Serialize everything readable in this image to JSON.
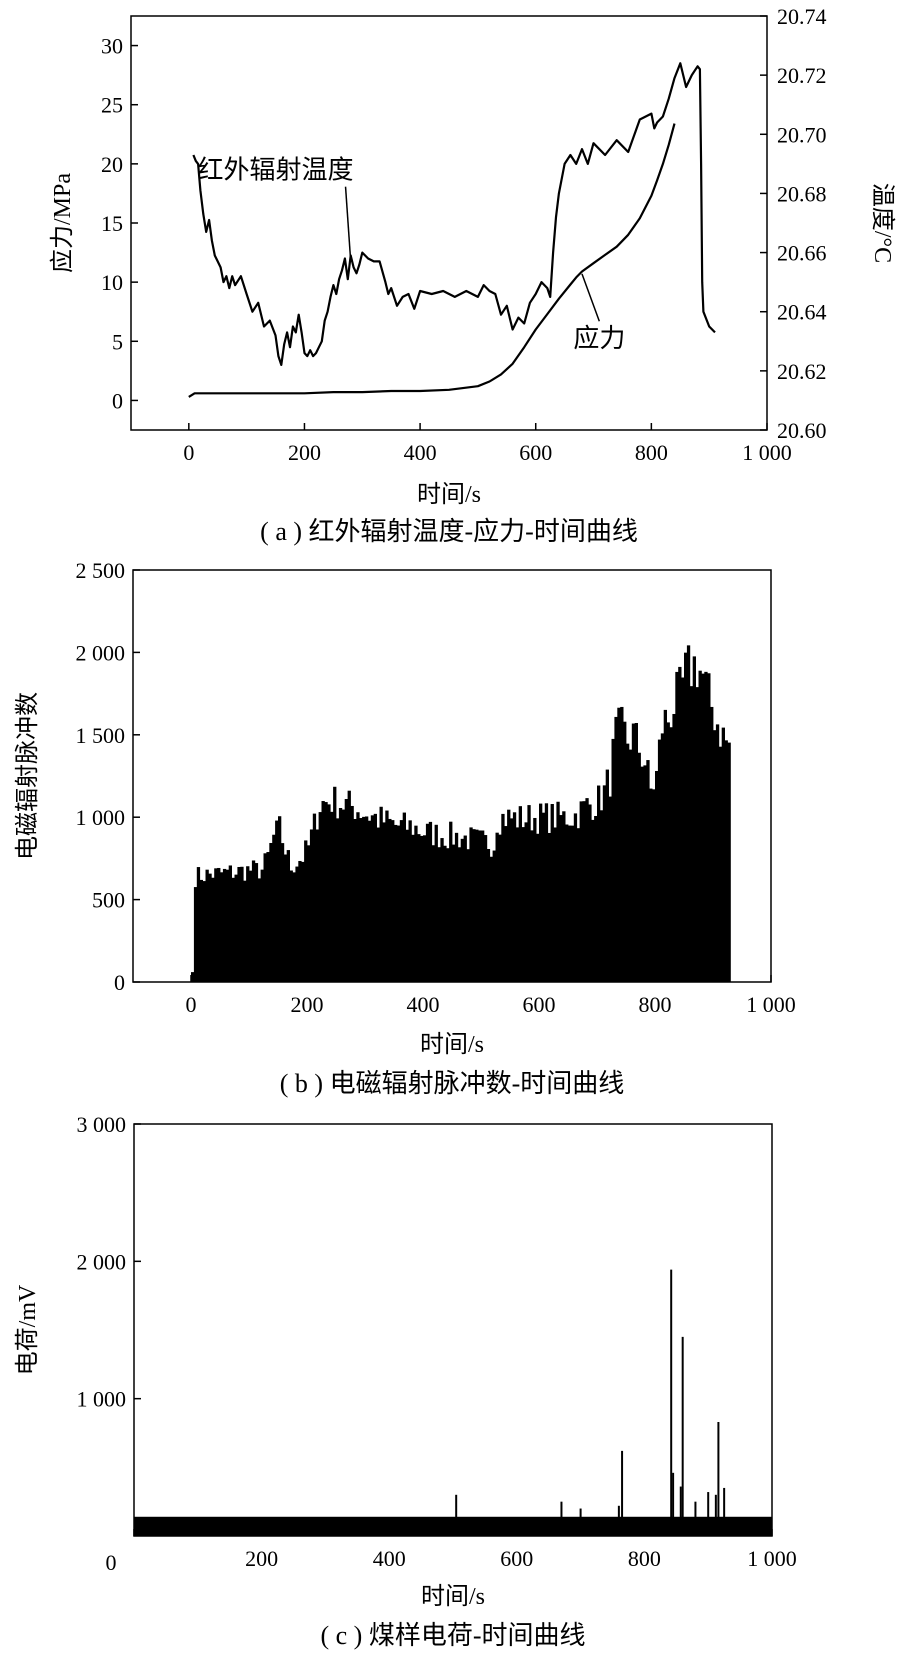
{
  "chart_data": [
    {
      "id": "a",
      "type": "line",
      "caption": "( a ) 红外辐射温度-应力-时间曲线",
      "xlabel": "时间/s",
      "ylabel": "应力/MPa",
      "y2label": "温度/°C",
      "xlim": [
        -100,
        1000
      ],
      "ylim": [
        -2.5,
        32.5
      ],
      "y2lim": [
        20.6,
        20.74
      ],
      "xticks": [
        0,
        200,
        400,
        600,
        800,
        1000
      ],
      "xtick_labels": [
        "0",
        "200",
        "400",
        "600",
        "800",
        "1 000"
      ],
      "yticks": [
        0,
        5,
        10,
        15,
        20,
        25,
        30
      ],
      "ytick_labels": [
        "0",
        "5",
        "10",
        "15",
        "20",
        "25",
        "30"
      ],
      "y2ticks": [
        20.6,
        20.62,
        20.64,
        20.66,
        20.68,
        20.7,
        20.72,
        20.74
      ],
      "y2tick_labels": [
        "20.60",
        "20.62",
        "20.64",
        "20.66",
        "20.68",
        "20.70",
        "20.72",
        "20.74"
      ],
      "annotations": [
        {
          "text": "红外辐射温度",
          "target": [
            280,
            20.657
          ],
          "label_at": [
            150,
            20.685
          ]
        },
        {
          "text": "应力",
          "target": [
            680,
            10.7
          ],
          "label_at": [
            710,
            4.5
          ]
        }
      ],
      "series": [
        {
          "name": "红外辐射温度",
          "axis": "right",
          "x": [
            8,
            12,
            16,
            20,
            25,
            30,
            35,
            40,
            45,
            50,
            55,
            60,
            65,
            70,
            75,
            80,
            90,
            100,
            110,
            120,
            130,
            140,
            150,
            155,
            160,
            165,
            170,
            175,
            180,
            185,
            190,
            195,
            200,
            205,
            210,
            215,
            220,
            225,
            230,
            235,
            240,
            245,
            250,
            255,
            260,
            265,
            270,
            275,
            280,
            285,
            290,
            295,
            300,
            310,
            320,
            330,
            340,
            345,
            350,
            360,
            370,
            380,
            390,
            400,
            420,
            440,
            460,
            480,
            500,
            510,
            520,
            530,
            540,
            550,
            560,
            570,
            580,
            590,
            600,
            610,
            620,
            625,
            630,
            635,
            640,
            650,
            660,
            670,
            680,
            690,
            700,
            720,
            740,
            760,
            780,
            800,
            805,
            810,
            820,
            830,
            840,
            850,
            860,
            870,
            880,
            884,
            886,
            888,
            890,
            900,
            910
          ],
          "y": [
            20.693,
            20.691,
            20.69,
            20.681,
            20.673,
            20.667,
            20.671,
            20.664,
            20.659,
            20.657,
            20.655,
            20.65,
            20.652,
            20.648,
            20.652,
            20.649,
            20.652,
            20.646,
            20.64,
            20.643,
            20.635,
            20.637,
            20.632,
            20.625,
            20.622,
            20.629,
            20.633,
            20.628,
            20.635,
            20.633,
            20.639,
            20.633,
            20.626,
            20.625,
            20.627,
            20.625,
            20.626,
            20.628,
            20.63,
            20.637,
            20.64,
            20.645,
            20.649,
            20.646,
            20.651,
            20.654,
            20.658,
            20.651,
            20.659,
            20.655,
            20.653,
            20.656,
            20.66,
            20.658,
            20.657,
            20.657,
            20.65,
            20.646,
            20.648,
            20.642,
            20.645,
            20.646,
            20.641,
            20.647,
            20.646,
            20.647,
            20.645,
            20.647,
            20.645,
            20.649,
            20.647,
            20.646,
            20.639,
            20.642,
            20.634,
            20.638,
            20.636,
            20.643,
            20.646,
            20.65,
            20.648,
            20.645,
            20.66,
            20.672,
            20.68,
            20.69,
            20.693,
            20.69,
            20.695,
            20.69,
            20.697,
            20.693,
            20.698,
            20.694,
            20.705,
            20.707,
            20.702,
            20.704,
            20.706,
            20.712,
            20.719,
            20.724,
            20.716,
            20.72,
            20.723,
            20.722,
            20.69,
            20.65,
            20.64,
            20.635,
            20.633
          ]
        },
        {
          "name": "应力",
          "axis": "left",
          "x": [
            0,
            10,
            50,
            100,
            150,
            200,
            250,
            300,
            350,
            400,
            450,
            500,
            520,
            540,
            560,
            580,
            600,
            620,
            640,
            660,
            670,
            680,
            700,
            720,
            740,
            760,
            780,
            800,
            810,
            820,
            830,
            840
          ],
          "y": [
            0.3,
            0.6,
            0.6,
            0.6,
            0.6,
            0.6,
            0.7,
            0.7,
            0.8,
            0.8,
            0.9,
            1.2,
            1.6,
            2.2,
            3.1,
            4.5,
            6.0,
            7.3,
            8.6,
            9.8,
            10.4,
            10.9,
            11.6,
            12.3,
            13.0,
            14.0,
            15.4,
            17.3,
            18.6,
            20.0,
            21.6,
            23.4
          ]
        }
      ]
    },
    {
      "id": "b",
      "type": "bar",
      "caption": "( b ) 电磁辐射脉冲数-时间曲线",
      "xlabel": "时间/s",
      "ylabel": "电磁辐射脉冲数",
      "xlim": [
        -100,
        1000
      ],
      "ylim": [
        0,
        2500
      ],
      "xticks": [
        0,
        200,
        400,
        600,
        800,
        1000
      ],
      "xtick_labels": [
        "0",
        "200",
        "400",
        "600",
        "800",
        "1 000"
      ],
      "yticks": [
        0,
        500,
        1000,
        1500,
        2000,
        2500
      ],
      "ytick_labels": [
        "0",
        "500",
        "1 000",
        "1 500",
        "2 000",
        "2 500"
      ],
      "bar_step": 5,
      "x_range": [
        0,
        930
      ],
      "envelope_x": [
        0,
        5,
        20,
        50,
        80,
        100,
        120,
        130,
        140,
        150,
        160,
        170,
        180,
        190,
        200,
        220,
        240,
        260,
        280,
        300,
        320,
        350,
        380,
        400,
        430,
        460,
        500,
        520,
        525,
        540,
        560,
        600,
        640,
        660,
        680,
        700,
        710,
        720,
        730,
        740,
        750,
        760,
        770,
        780,
        790,
        800,
        810,
        820,
        830,
        840,
        850,
        860,
        870,
        880,
        890,
        900,
        910,
        920,
        930
      ],
      "envelope_y": [
        60,
        640,
        650,
        660,
        670,
        680,
        680,
        760,
        880,
        930,
        800,
        700,
        730,
        760,
        820,
        1080,
        1100,
        1080,
        1060,
        1020,
        990,
        950,
        940,
        910,
        890,
        880,
        850,
        840,
        990,
        1000,
        990,
        1000,
        1000,
        1010,
        1070,
        1100,
        1150,
        1240,
        1500,
        1530,
        1470,
        1500,
        1420,
        1340,
        1160,
        1250,
        1560,
        1600,
        1690,
        1740,
        1860,
        1910,
        1930,
        1850,
        1720,
        1630,
        1530,
        1460,
        1410
      ]
    },
    {
      "id": "c",
      "type": "line",
      "caption": "( c ) 煤样电荷-时间曲线",
      "xlabel": "时间/s",
      "ylabel": "电荷/mV",
      "xlim": [
        0,
        1000
      ],
      "ylim": [
        0,
        3000
      ],
      "xticks": [
        0,
        200,
        400,
        600,
        800,
        1000
      ],
      "xtick_labels": [
        "0",
        "200",
        "400",
        "600",
        "800",
        "1 000"
      ],
      "yticks": [
        1000,
        2000,
        3000
      ],
      "ytick_labels": [
        "1 000",
        "2 000",
        "3 000"
      ],
      "baseline_band": [
        60,
        140
      ],
      "spikes": [
        {
          "x": 505,
          "y": 300
        },
        {
          "x": 670,
          "y": 250
        },
        {
          "x": 700,
          "y": 200
        },
        {
          "x": 760,
          "y": 220
        },
        {
          "x": 765,
          "y": 620
        },
        {
          "x": 842,
          "y": 1940
        },
        {
          "x": 845,
          "y": 460
        },
        {
          "x": 857,
          "y": 360
        },
        {
          "x": 860,
          "y": 1450
        },
        {
          "x": 880,
          "y": 250
        },
        {
          "x": 900,
          "y": 320
        },
        {
          "x": 912,
          "y": 300
        },
        {
          "x": 916,
          "y": 830
        },
        {
          "x": 925,
          "y": 350
        }
      ]
    }
  ]
}
